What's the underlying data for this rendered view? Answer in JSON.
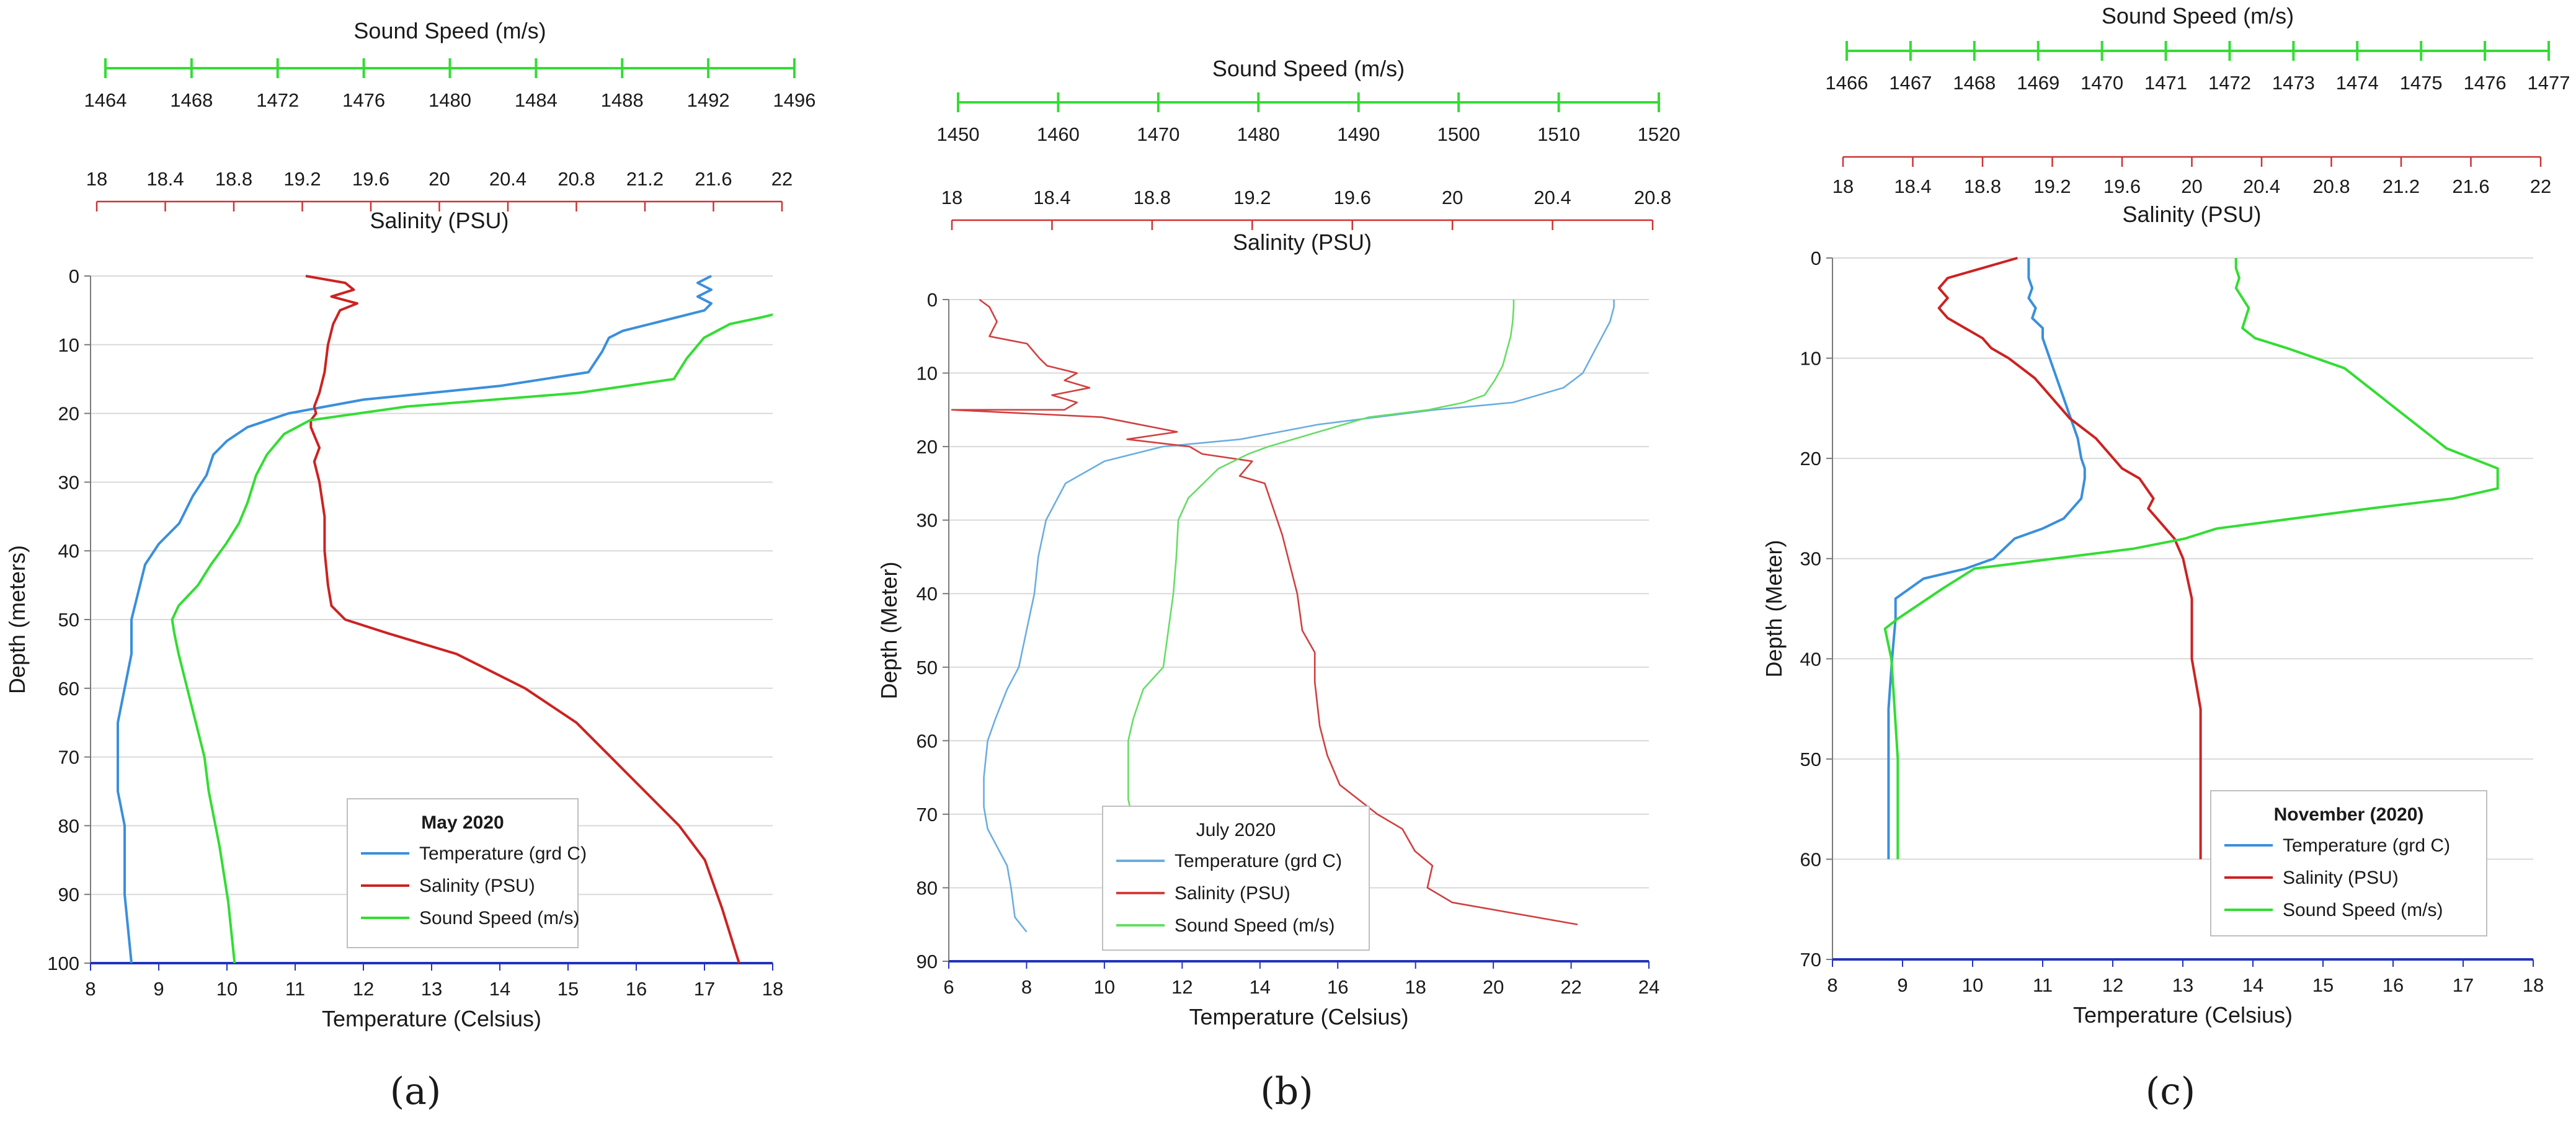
{
  "figure": {
    "panels": [
      {
        "label": "(a)"
      },
      {
        "label": "(b)"
      },
      {
        "label": "(c)"
      }
    ]
  },
  "chart_data": [
    {
      "type": "line",
      "panel_label": "(a)",
      "legend_title": "May 2020",
      "legend_placement": "bottom-right",
      "grid": true,
      "ylabel": "Depth (meters)",
      "ylim": [
        0,
        100
      ],
      "y_ticks": [
        0,
        10,
        20,
        30,
        40,
        50,
        60,
        70,
        80,
        90,
        100
      ],
      "y_inverted": true,
      "xlabel": "Temperature (Celsius)",
      "xlim": [
        8,
        18
      ],
      "x_ticks": [
        8,
        9,
        10,
        11,
        12,
        13,
        14,
        15,
        16,
        17,
        18
      ],
      "top_axes": [
        {
          "title": "Sound Speed (m/s)",
          "color": "#33dd33",
          "range": [
            1464,
            1496
          ],
          "ticks": [
            1464,
            1468,
            1472,
            1476,
            1480,
            1484,
            1488,
            1492,
            1496
          ]
        },
        {
          "title": "Salinity (PSU)",
          "color": "#cc3333",
          "range": [
            18,
            22
          ],
          "ticks": [
            18,
            18.4,
            18.8,
            19.2,
            19.6,
            20,
            20.4,
            20.8,
            21.2,
            21.6,
            22
          ]
        }
      ],
      "series": [
        {
          "name": "Temperature (grd C)",
          "color": "#3a8fdc",
          "axis": "temperature",
          "x": [
            17.1,
            16.9,
            17.1,
            16.9,
            17.1,
            17.0,
            16.6,
            16.2,
            15.8,
            15.6,
            15.5,
            15.3,
            14.0,
            12.0,
            10.9,
            10.6,
            10.3,
            10.0,
            9.8,
            9.7,
            9.5,
            9.3,
            9.0,
            8.8,
            8.7,
            8.6,
            8.6,
            8.5,
            8.4,
            8.4,
            8.4,
            8.5,
            8.5,
            8.6
          ],
          "y": [
            0,
            1,
            2,
            3,
            4,
            5,
            6,
            7,
            8,
            9,
            11,
            14,
            16,
            18,
            20,
            21,
            22,
            24,
            26,
            29,
            32,
            36,
            39,
            42,
            46,
            50,
            55,
            60,
            65,
            70,
            75,
            80,
            90,
            100
          ]
        },
        {
          "name": "Salinity (PSU)",
          "color": "#cc2222",
          "axis": "salinity",
          "x": [
            19.22,
            19.45,
            19.5,
            19.37,
            19.52,
            19.42,
            19.38,
            19.35,
            19.33,
            19.3,
            19.27,
            19.28,
            19.25,
            19.25,
            19.3,
            19.27,
            19.3,
            19.33,
            19.33,
            19.35,
            19.37,
            19.45,
            19.7,
            20.1,
            20.5,
            20.8,
            21.0,
            21.2,
            21.4,
            21.55,
            21.65,
            21.75
          ],
          "y": [
            0,
            1,
            2,
            3,
            4,
            5,
            7,
            10,
            14,
            17,
            19,
            20,
            21,
            22,
            25,
            27,
            30,
            35,
            40,
            45,
            48,
            50,
            52,
            55,
            60,
            65,
            70,
            75,
            80,
            85,
            92,
            100
          ]
        },
        {
          "name": "Sound Speed (m/s)",
          "color": "#33dd33",
          "axis": "sound_speed",
          "x": [
            1495.0,
            1495.9,
            1495.3,
            1495.9,
            1495.1,
            1495.8,
            1494.5,
            1493.0,
            1491.8,
            1491.0,
            1490.4,
            1486.0,
            1478.0,
            1473.5,
            1472.3,
            1471.5,
            1471.0,
            1470.6,
            1470.2,
            1469.6,
            1468.9,
            1468.3,
            1467.4,
            1467.1,
            1467.2,
            1467.4,
            1467.8,
            1468.2,
            1468.6,
            1468.8,
            1469.3,
            1469.7,
            1470.0
          ],
          "y": [
            0,
            1,
            2,
            3,
            4,
            5,
            6,
            7,
            9,
            12,
            15,
            17,
            19,
            21,
            23,
            26,
            29,
            33,
            36,
            39,
            42,
            45,
            48,
            50,
            52,
            55,
            60,
            65,
            70,
            75,
            83,
            91,
            100
          ]
        }
      ]
    },
    {
      "type": "line",
      "panel_label": "(b)",
      "legend_title": "July 2020",
      "legend_placement": "bottom-right",
      "grid": true,
      "ylabel": "Depth (Meter)",
      "ylim": [
        0,
        90
      ],
      "y_ticks": [
        0,
        10,
        20,
        30,
        40,
        50,
        60,
        70,
        80,
        90
      ],
      "y_inverted": true,
      "xlabel": "Temperature (Celsius)",
      "xlim": [
        6,
        24
      ],
      "x_ticks": [
        6,
        8,
        10,
        12,
        14,
        16,
        18,
        20,
        22,
        24
      ],
      "top_axes": [
        {
          "title": "Sound Speed (m/s)",
          "color": "#33dd33",
          "range": [
            1450,
            1520
          ],
          "ticks": [
            1450,
            1460,
            1470,
            1480,
            1490,
            1500,
            1510,
            1520
          ]
        },
        {
          "title": "Salinity (PSU)",
          "color": "#cc3333",
          "range": [
            18,
            20.8
          ],
          "ticks": [
            18,
            18.4,
            18.8,
            19.2,
            19.6,
            20,
            20.4,
            20.8
          ]
        }
      ],
      "series": [
        {
          "name": "Temperature (grd C)",
          "color": "#6aaee0",
          "axis": "temperature",
          "x": [
            23.1,
            23.1,
            23.0,
            22.8,
            22.5,
            22.3,
            21.8,
            20.5,
            18.5,
            15.5,
            13.5,
            11.5,
            10.0,
            9.0,
            8.5,
            8.3,
            8.2,
            8.0,
            7.8,
            7.5,
            7.2,
            7.0,
            6.9,
            6.9,
            7.0,
            7.3,
            7.5,
            7.6,
            7.7,
            8.0
          ],
          "y": [
            0,
            1,
            3,
            5,
            8,
            10,
            12,
            14,
            15,
            17,
            19,
            20,
            22,
            25,
            30,
            35,
            40,
            45,
            50,
            53,
            57,
            60,
            65,
            69,
            72,
            75,
            77,
            80,
            84,
            86
          ]
        },
        {
          "name": "Salinity (PSU)",
          "color": "#d04040",
          "axis": "salinity",
          "x": [
            18.11,
            18.15,
            18.18,
            18.15,
            18.3,
            18.35,
            18.38,
            18.5,
            18.45,
            18.55,
            18.4,
            18.5,
            18.45,
            18.0,
            18.6,
            18.9,
            18.7,
            18.95,
            19.0,
            19.2,
            19.15,
            19.25,
            19.28,
            19.32,
            19.35,
            19.38,
            19.4,
            19.45,
            19.45,
            19.47,
            19.5,
            19.55,
            19.7,
            19.8,
            19.85,
            19.92,
            19.9,
            20.0,
            20.5
          ],
          "y": [
            0,
            1,
            3,
            5,
            6,
            8,
            9,
            10,
            11,
            12,
            13,
            14,
            15,
            15,
            16,
            18,
            19,
            20,
            21,
            22,
            24,
            25,
            28,
            32,
            36,
            40,
            45,
            48,
            52,
            58,
            62,
            66,
            70,
            72,
            75,
            77,
            80,
            82,
            85
          ]
        },
        {
          "name": "Sound Speed (m/s)",
          "color": "#66dd66",
          "axis": "sound_speed",
          "x": [
            1505.5,
            1505.5,
            1505.4,
            1505.2,
            1504.8,
            1504.4,
            1503.6,
            1502.6,
            1500.5,
            1497.0,
            1491.0,
            1486.0,
            1481.0,
            1479.0,
            1476.0,
            1474.5,
            1473.0,
            1472.0,
            1471.8,
            1471.5,
            1471.0,
            1470.5,
            1468.5,
            1467.5,
            1467.0,
            1467.0,
            1467.0,
            1467.5,
            1468.5,
            1469.0,
            1469.5,
            1470.0,
            1470.0
          ],
          "y": [
            0,
            1,
            3,
            5,
            7,
            9,
            11,
            13,
            14,
            15,
            16,
            18,
            20,
            21,
            23,
            25,
            27,
            30,
            35,
            40,
            45,
            50,
            53,
            57,
            60,
            65,
            68,
            71,
            74,
            77,
            80,
            82,
            84
          ]
        }
      ]
    },
    {
      "type": "line",
      "panel_label": "(c)",
      "legend_title": "November (2020)",
      "legend_placement": "bottom-right",
      "grid": true,
      "ylabel": "Depth (Meter)",
      "ylim": [
        0,
        70
      ],
      "y_ticks": [
        0,
        10,
        20,
        30,
        40,
        50,
        60,
        70
      ],
      "y_inverted": true,
      "xlabel": "Temperature (Celsius)",
      "xlim": [
        8,
        18
      ],
      "x_ticks": [
        8,
        9,
        10,
        11,
        12,
        13,
        14,
        15,
        16,
        17,
        18
      ],
      "top_axes": [
        {
          "title": "Sound Speed (m/s)",
          "color": "#33dd33",
          "range": [
            1466,
            1477
          ],
          "ticks": [
            1466,
            1467,
            1468,
            1469,
            1470,
            1471,
            1472,
            1473,
            1474,
            1475,
            1476,
            1477
          ]
        },
        {
          "title": "Salinity (PSU)",
          "color": "#cc3333",
          "range": [
            18,
            22
          ],
          "ticks": [
            18,
            18.4,
            18.8,
            19.2,
            19.6,
            20,
            20.4,
            20.8,
            21.2,
            21.6,
            22
          ]
        }
      ],
      "series": [
        {
          "name": "Temperature (grd C)",
          "color": "#3a8fdc",
          "axis": "temperature",
          "x": [
            10.8,
            10.8,
            10.85,
            10.8,
            10.9,
            10.85,
            11.0,
            11.0,
            11.1,
            11.2,
            11.3,
            11.4,
            11.5,
            11.55,
            11.6,
            11.6,
            11.55,
            11.3,
            11.0,
            10.6,
            10.3,
            9.9,
            9.3,
            8.9,
            8.9,
            8.85,
            8.8,
            8.8,
            8.8,
            8.8
          ],
          "y": [
            0,
            2,
            3,
            4,
            5,
            6,
            7,
            8,
            10,
            12,
            14,
            16,
            18,
            20,
            21,
            22,
            24,
            26,
            27,
            28,
            30,
            31,
            32,
            34,
            36,
            40,
            45,
            50,
            55,
            60
          ]
        },
        {
          "name": "Salinity (PSU)",
          "color": "#cc2222",
          "axis": "salinity",
          "x": [
            19.0,
            18.8,
            18.6,
            18.55,
            18.6,
            18.55,
            18.6,
            18.7,
            18.8,
            18.85,
            18.95,
            19.1,
            19.2,
            19.3,
            19.45,
            19.55,
            19.6,
            19.7,
            19.78,
            19.75,
            19.8,
            19.85,
            19.9,
            19.95,
            20.0,
            20.0,
            20.05,
            20.05,
            20.05,
            20.05
          ],
          "y": [
            0,
            1,
            2,
            3,
            4,
            5,
            6,
            7,
            8,
            9,
            10,
            12,
            14,
            16,
            18,
            20,
            21,
            22,
            24,
            25,
            26,
            27,
            28,
            30,
            34,
            40,
            45,
            50,
            55,
            60
          ]
        },
        {
          "name": "Sound Speed (m/s)",
          "color": "#33dd33",
          "axis": "sound_speed",
          "x": [
            1472.1,
            1472.1,
            1472.15,
            1472.1,
            1472.2,
            1472.3,
            1472.25,
            1472.2,
            1472.4,
            1472.9,
            1473.8,
            1474.2,
            1474.6,
            1475.0,
            1475.4,
            1475.8,
            1476.2,
            1476.2,
            1475.5,
            1474.2,
            1471.8,
            1471.3,
            1470.5,
            1468.0,
            1467.5,
            1466.8,
            1466.6,
            1466.7,
            1466.75,
            1466.8,
            1466.8,
            1466.8
          ],
          "y": [
            0,
            1,
            2,
            3,
            4,
            5,
            6,
            7,
            8,
            9,
            11,
            13,
            15,
            17,
            19,
            20,
            21,
            23,
            24,
            25,
            27,
            28,
            29,
            31,
            33,
            36,
            37,
            40,
            45,
            50,
            55,
            60
          ]
        }
      ]
    }
  ]
}
